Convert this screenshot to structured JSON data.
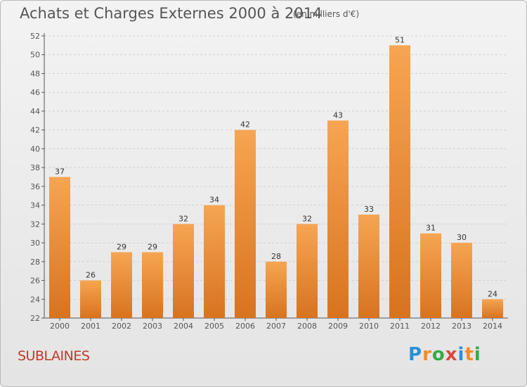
{
  "title": "Achats et Charges Externes 2000 à 2014",
  "subtitle": "(en milliers d'€)",
  "commune": "SUBLAINES",
  "logo": {
    "letters": [
      "P",
      "r",
      "o",
      "x",
      "i",
      "t",
      "i"
    ],
    "colors": [
      "#2a8fd6",
      "#ef8c2a",
      "#3aa84a",
      "#d94a3a",
      "#2a8fd6",
      "#ef8c2a",
      "#3aa84a"
    ]
  },
  "colors": {
    "bar_top": "#f6a552",
    "bar_bottom": "#d8731f",
    "label": "#333333",
    "axis": "#555555"
  },
  "chart_data": {
    "type": "bar",
    "title": "Achats et Charges Externes 2000 à 2014",
    "subtitle": "(en milliers d'€)",
    "xlabel": "",
    "ylabel": "",
    "categories": [
      "2000",
      "2001",
      "2002",
      "2003",
      "2004",
      "2005",
      "2006",
      "2007",
      "2008",
      "2009",
      "2010",
      "2011",
      "2012",
      "2013",
      "2014"
    ],
    "values": [
      37,
      26,
      29,
      29,
      32,
      34,
      42,
      28,
      32,
      43,
      33,
      51,
      31,
      30,
      24
    ],
    "ylim": [
      22,
      52
    ],
    "yticks": [
      22,
      24,
      26,
      28,
      30,
      32,
      34,
      36,
      38,
      40,
      42,
      44,
      46,
      48,
      50,
      52
    ],
    "grid": true,
    "legend": "none"
  }
}
